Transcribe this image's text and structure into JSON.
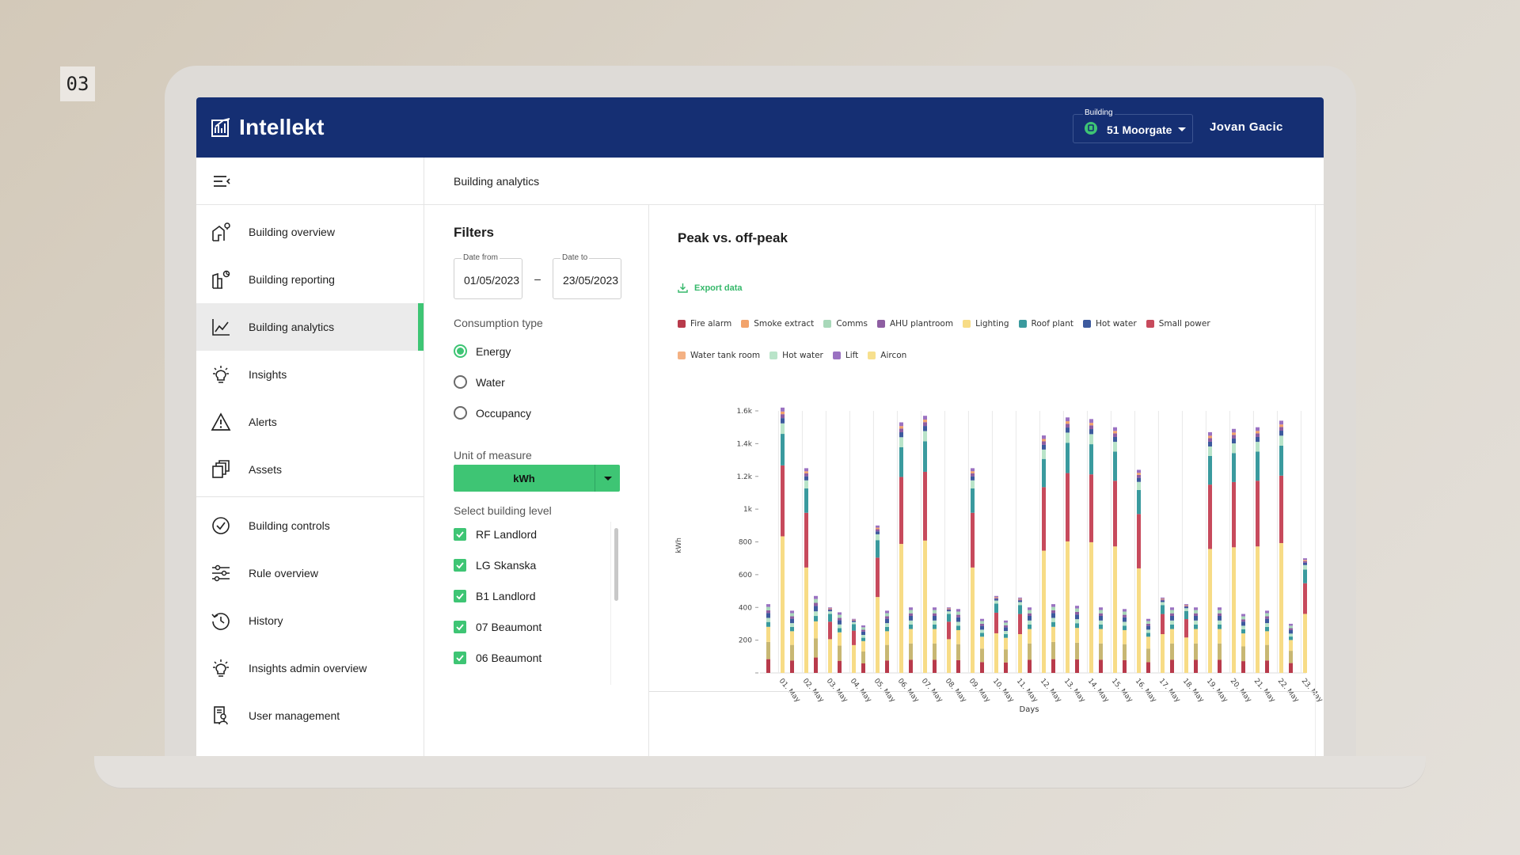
{
  "page_number": "03",
  "app": {
    "name": "Intellekt"
  },
  "header": {
    "building_label": "Building",
    "building_value": "51 Moorgate",
    "user_name": "Jovan Gacic"
  },
  "sidebar": {
    "items": [
      {
        "label": "Building overview",
        "icon": "building-overview-icon"
      },
      {
        "label": "Building reporting",
        "icon": "building-reporting-icon"
      },
      {
        "label": "Building analytics",
        "icon": "analytics-chart-icon",
        "active": true
      },
      {
        "label": "Insights",
        "icon": "lightbulb-icon"
      },
      {
        "label": "Alerts",
        "icon": "warning-icon"
      },
      {
        "label": "Assets",
        "icon": "assets-icon"
      },
      {
        "label": "Building controls",
        "icon": "check-circle-icon"
      },
      {
        "label": "Rule overview",
        "icon": "sliders-icon"
      },
      {
        "label": "History",
        "icon": "history-icon"
      },
      {
        "label": "Insights admin overview",
        "icon": "lightbulb-icon"
      },
      {
        "label": "User management",
        "icon": "user-management-icon"
      }
    ]
  },
  "content": {
    "breadcrumb": "Building analytics"
  },
  "filters": {
    "title": "Filters",
    "date_from_label": "Date from",
    "date_from_value": "01/05/2023",
    "date_to_label": "Date to",
    "date_to_value": "23/05/2023",
    "dash": "–",
    "consumption_label": "Consumption type",
    "consumption_options": [
      {
        "label": "Energy",
        "selected": true
      },
      {
        "label": "Water",
        "selected": false
      },
      {
        "label": "Occupancy",
        "selected": false
      }
    ],
    "unit_label": "Unit of measure",
    "unit_value": "kWh",
    "level_label": "Select building level",
    "levels": [
      {
        "label": "RF Landlord",
        "checked": true
      },
      {
        "label": "LG Skanska",
        "checked": true
      },
      {
        "label": "B1 Landlord",
        "checked": true
      },
      {
        "label": "07 Beaumont",
        "checked": true
      },
      {
        "label": "06 Beaumont",
        "checked": true
      }
    ]
  },
  "chart": {
    "title": "Peak vs. off-peak",
    "export_label": "Export data"
  },
  "chart_data": {
    "type": "bar",
    "stacked": true,
    "xlabel": "Days",
    "ylabel": "kWh",
    "ylim": [
      0,
      1600
    ],
    "y_ticks": [
      "",
      "200",
      "400",
      "600",
      "800",
      "1k",
      "1.2k",
      "1.4k",
      "1.6k"
    ],
    "grid": "vertical",
    "categories": [
      "01. May",
      "02. May",
      "03. May",
      "04. May",
      "05. May",
      "06. May",
      "07. May",
      "08. May",
      "09. May",
      "10. May",
      "11. May",
      "12. May",
      "13. May",
      "14. May",
      "15. May",
      "16. May",
      "17. May",
      "18. May",
      "19. May",
      "20. May",
      "21. May",
      "22. May",
      "23. May"
    ],
    "legend": [
      {
        "name": "Fire alarm",
        "color": "#b83a4b"
      },
      {
        "name": "Smoke extract",
        "color": "#f2a36b"
      },
      {
        "name": "Comms",
        "color": "#a8d8b9"
      },
      {
        "name": "AHU plantroom",
        "color": "#8e5ea2"
      },
      {
        "name": "Lighting",
        "color": "#f7dc86"
      },
      {
        "name": "Roof plant",
        "color": "#3a9a9e"
      },
      {
        "name": "Hot water",
        "color": "#3d5a9e"
      },
      {
        "name": "Small power",
        "color": "#c74a5c"
      },
      {
        "name": "Water tank room",
        "color": "#f4b183"
      },
      {
        "name": "Hot water",
        "color": "#b9e4c9"
      },
      {
        "name": "Lift",
        "color": "#9b72c2"
      },
      {
        "name": "Aircon",
        "color": "#f7e08e"
      }
    ],
    "peak_totals": [
      1620,
      1250,
      400,
      330,
      900,
      1530,
      1570,
      400,
      1250,
      470,
      460,
      1450,
      1560,
      1550,
      1500,
      1240,
      460,
      420,
      1470,
      1490,
      1500,
      1540,
      700
    ],
    "offpeak_totals": [
      420,
      380,
      470,
      370,
      290,
      380,
      400,
      400,
      390,
      330,
      320,
      400,
      420,
      410,
      400,
      390,
      330,
      400,
      400,
      400,
      360,
      380,
      300
    ],
    "peak_segments_fraction": {
      "Fire alarm": 0.0,
      "Lighting": 0.52,
      "Small power": 0.27,
      "Roof plant": 0.12,
      "Hot water (light)": 0.04,
      "Hot water": 0.02,
      "AHU plantroom": 0.015,
      "Smoke extract": 0.01,
      "Lift": 0.015
    },
    "offpeak_segments_fraction": {
      "Fire alarm": 0.2,
      "Aircon": 0.25,
      "Lighting": 0.22,
      "Roof plant": 0.07,
      "Hot water (light)": 0.06,
      "Hot water": 0.07,
      "AHU plantroom": 0.04,
      "Comms": 0.05,
      "Lift": 0.04
    }
  }
}
